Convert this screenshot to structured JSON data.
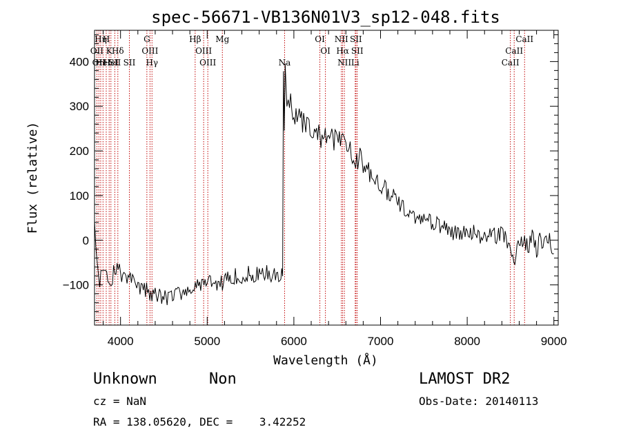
{
  "chart_data": {
    "type": "line",
    "title": "spec-56671-VB136N01V3_sp12-048.fits",
    "xlabel": "Wavelength (Å)",
    "ylabel": "Flux (relative)",
    "xlim": [
      3700,
      9050
    ],
    "ylim": [
      -190,
      470
    ],
    "xticks": [
      4000,
      5000,
      6000,
      7000,
      8000,
      9000
    ],
    "yticks": [
      -100,
      0,
      100,
      200,
      300,
      400
    ],
    "line_color": "#000000",
    "marker_color": "#c00000",
    "grid": false,
    "series": [
      {
        "x": [
          3700,
          3730,
          3760,
          3800,
          3840,
          3880,
          3920,
          3960,
          4000,
          4050,
          4100,
          4150,
          4200,
          4250,
          4300,
          4350,
          4400,
          4450,
          4500,
          4550,
          4600,
          4650,
          4700,
          4750,
          4800,
          4850,
          4900,
          4950,
          5000,
          5050,
          5100,
          5150,
          5200,
          5250,
          5300,
          5350,
          5400,
          5450,
          5500,
          5550,
          5600,
          5650,
          5700,
          5750,
          5800,
          5850,
          5870,
          5880,
          5890,
          5900,
          5920,
          5950,
          6000,
          6050,
          6100,
          6150,
          6200,
          6250,
          6300,
          6350,
          6400,
          6450,
          6500,
          6550,
          6600,
          6650,
          6700,
          6750,
          6800,
          6900,
          7000,
          7100,
          7200,
          7300,
          7400,
          7500,
          7600,
          7700,
          7800,
          7900,
          8000,
          8100,
          8200,
          8300,
          8400,
          8500,
          8550,
          8600,
          8650,
          8700,
          8750,
          8800,
          8850,
          8900,
          8950,
          9000
        ],
        "values": [
          40,
          -60,
          -90,
          -80,
          -75,
          -95,
          -70,
          -60,
          -75,
          -70,
          -85,
          -95,
          -110,
          -105,
          -115,
          -120,
          -125,
          -120,
          -130,
          -130,
          -125,
          -120,
          -115,
          -120,
          -110,
          -105,
          -95,
          -100,
          -95,
          -100,
          -95,
          -90,
          -95,
          -85,
          -80,
          -85,
          -80,
          -75,
          -80,
          -75,
          -80,
          -75,
          -70,
          -75,
          -75,
          -80,
          -70,
          400,
          270,
          380,
          300,
          320,
          270,
          280,
          260,
          250,
          245,
          240,
          235,
          230,
          225,
          225,
          220,
          215,
          215,
          200,
          190,
          185,
          175,
          150,
          125,
          105,
          85,
          65,
          55,
          45,
          40,
          30,
          20,
          20,
          15,
          15,
          10,
          10,
          15,
          -20,
          -40,
          -10,
          0,
          -20,
          5,
          -20,
          5,
          -10,
          0,
          -30
        ]
      }
    ],
    "line_markers": [
      {
        "w": 3727,
        "label": "OII",
        "row": 2
      },
      {
        "w": 3750,
        "label": "OII",
        "row": 3
      },
      {
        "w": 3771,
        "label": "Hη",
        "row": 1
      },
      {
        "w": 3798,
        "label": "HeI",
        "row": 3
      },
      {
        "w": 3835,
        "label": "H",
        "row": 1
      },
      {
        "w": 3869,
        "label": "K",
        "row": 2
      },
      {
        "w": 3889,
        "label": "HeI",
        "row": 3
      },
      {
        "w": 3934,
        "label": "SII",
        "row": 3
      },
      {
        "w": 3969,
        "label": "Hδ",
        "row": 2
      },
      {
        "w": 4102,
        "label": "SII",
        "row": 3
      },
      {
        "w": 4304,
        "label": "G",
        "row": 1
      },
      {
        "w": 4340,
        "label": "OIII",
        "row": 2
      },
      {
        "w": 4363,
        "label": "Hγ",
        "row": 3
      },
      {
        "w": 4861,
        "label": "Hβ",
        "row": 1
      },
      {
        "w": 4959,
        "label": "OIII",
        "row": 2
      },
      {
        "w": 5007,
        "label": "OIII",
        "row": 3
      },
      {
        "w": 5175,
        "label": "Mg",
        "row": 1
      },
      {
        "w": 5893,
        "label": "Na",
        "row": 3
      },
      {
        "w": 6300,
        "label": "OI",
        "row": 1
      },
      {
        "w": 6364,
        "label": "OI",
        "row": 2
      },
      {
        "w": 6548,
        "label": "NII",
        "row": 1
      },
      {
        "w": 6563,
        "label": "Hα",
        "row": 2
      },
      {
        "w": 6583,
        "label": "NII",
        "row": 3
      },
      {
        "w": 6708,
        "label": "Li",
        "row": 3
      },
      {
        "w": 6716,
        "label": "SII",
        "row": 1
      },
      {
        "w": 6731,
        "label": "SII",
        "row": 2
      },
      {
        "w": 8498,
        "label": "CaII",
        "row": 3
      },
      {
        "w": 8542,
        "label": "CaII",
        "row": 2
      },
      {
        "w": 8662,
        "label": "CaII",
        "row": 1
      }
    ]
  },
  "info": {
    "class_label": "Unknown",
    "subclass_label": "Non",
    "cz_line": "cz = NaN",
    "coords_line": "RA = 138.05620, DEC =    3.42252",
    "survey": "LAMOST DR2",
    "obs_date_line": "Obs-Date: 20140113"
  }
}
